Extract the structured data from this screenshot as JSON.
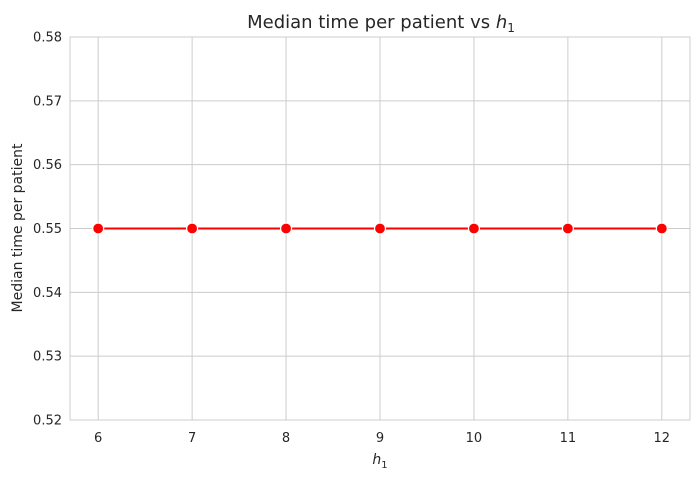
{
  "chart_data": {
    "type": "line",
    "title_prefix": "Median time per patient vs ",
    "title_var": "h",
    "title_sub": "1",
    "xlabel_var": "h",
    "xlabel_sub": "1",
    "ylabel": "Median time per patient",
    "x": [
      6,
      7,
      8,
      9,
      10,
      11,
      12
    ],
    "series": [
      {
        "values": [
          0.55,
          0.55,
          0.55,
          0.55,
          0.55,
          0.55,
          0.55
        ],
        "color": "#ff0000"
      }
    ],
    "xlim": [
      5.7,
      12.3
    ],
    "ylim": [
      0.52,
      0.58
    ],
    "xticks": [
      "6",
      "7",
      "8",
      "9",
      "10",
      "11",
      "12"
    ],
    "yticks": [
      "0.52",
      "0.53",
      "0.54",
      "0.55",
      "0.56",
      "0.57",
      "0.58"
    ],
    "grid": true,
    "background": "#ffffff",
    "grid_color": "#cccccc"
  }
}
